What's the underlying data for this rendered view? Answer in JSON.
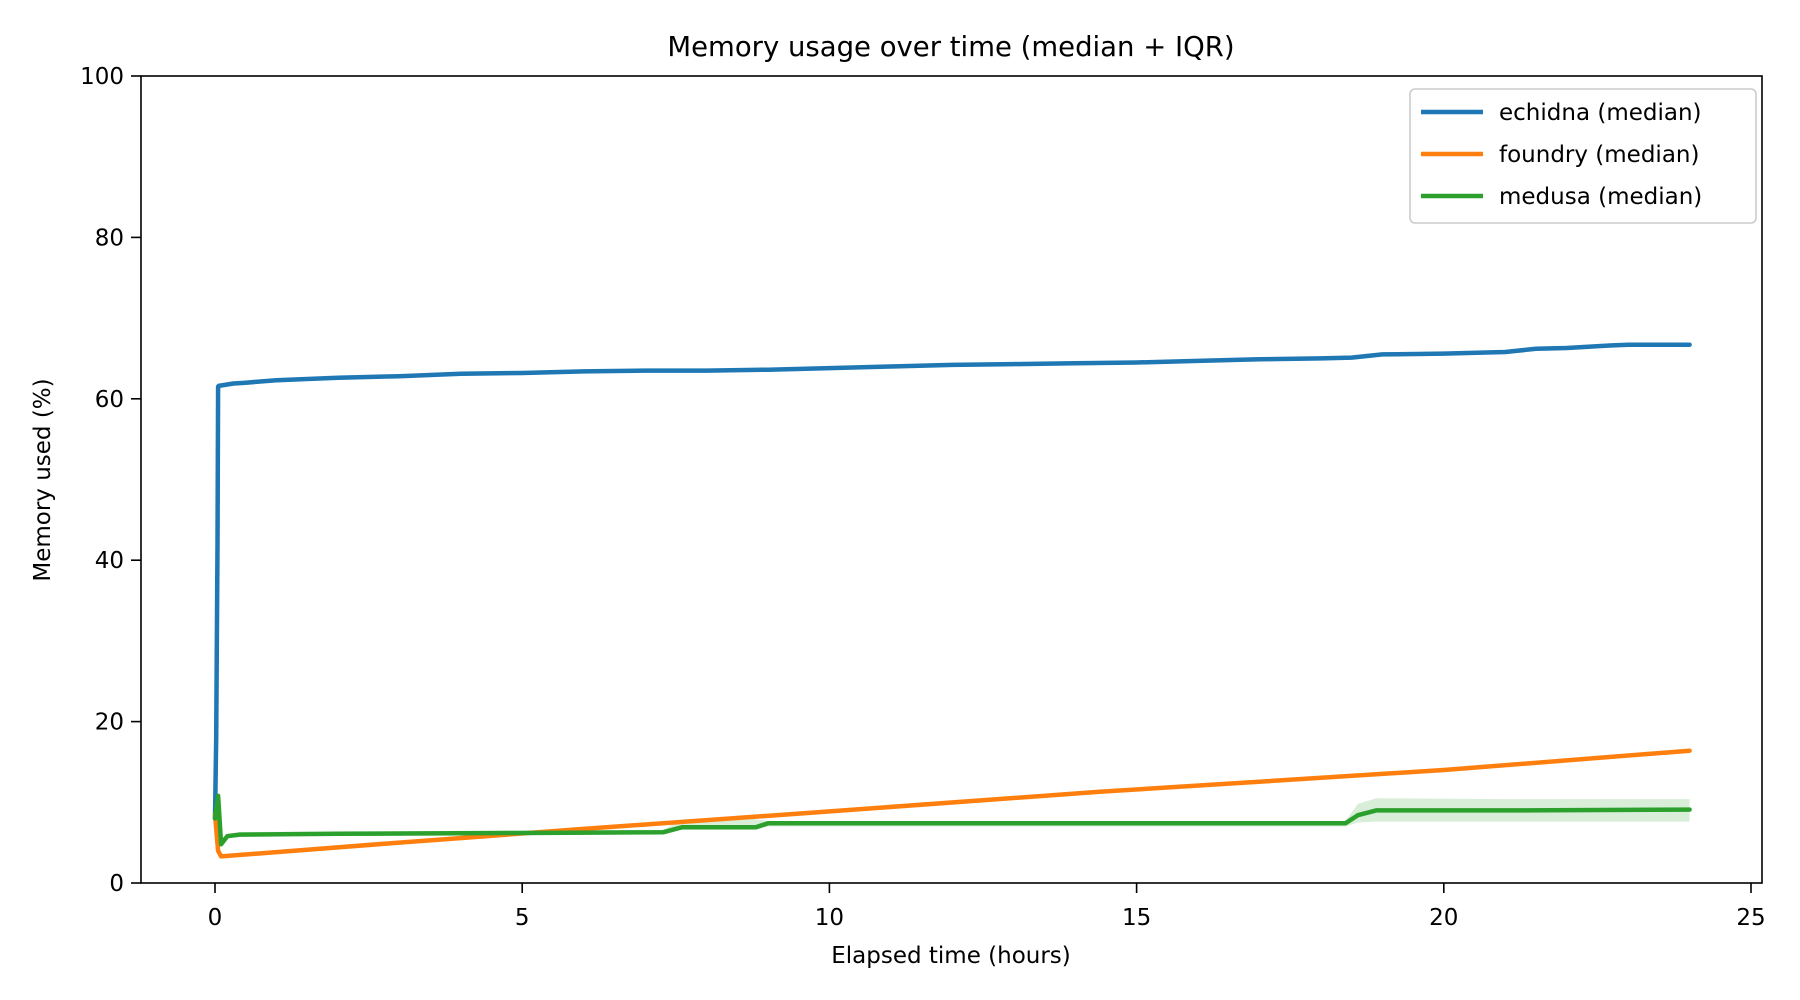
{
  "chart_data": {
    "type": "line",
    "title": "Memory usage over time (median + IQR)",
    "xlabel": "Elapsed time (hours)",
    "ylabel": "Memory used (%)",
    "xlim": [
      -1.2,
      25.3
    ],
    "ylim": [
      0,
      100
    ],
    "xticks": [
      0,
      5,
      10,
      15,
      20,
      25
    ],
    "yticks": [
      0,
      20,
      40,
      60,
      80,
      100
    ],
    "grid": false,
    "legend_position": "upper right",
    "series": [
      {
        "name": "echidna (median)",
        "color": "#1f77b4",
        "x": [
          0.0,
          0.02,
          0.04,
          0.05,
          0.06,
          0.3,
          0.5,
          1.0,
          2.0,
          3.0,
          4.0,
          5.0,
          6.0,
          7.0,
          8.0,
          9.0,
          10.0,
          11.0,
          12.0,
          13.0,
          14.0,
          15.0,
          16.0,
          17.0,
          18.0,
          18.5,
          19.0,
          20.0,
          21.0,
          21.5,
          22.0,
          22.7,
          23.0,
          24.0
        ],
        "values": [
          8.0,
          18.0,
          42.0,
          61.5,
          61.6,
          61.9,
          62.0,
          62.3,
          62.6,
          62.8,
          63.1,
          63.2,
          63.4,
          63.5,
          63.5,
          63.6,
          63.8,
          64.0,
          64.2,
          64.3,
          64.4,
          64.5,
          64.7,
          64.9,
          65.0,
          65.1,
          65.5,
          65.6,
          65.8,
          66.2,
          66.3,
          66.6,
          66.7,
          66.7
        ]
      },
      {
        "name": "foundry (median)",
        "color": "#ff7f0e",
        "x": [
          0.0,
          0.05,
          0.1,
          3.0,
          6.0,
          9.5,
          14.4,
          20.0,
          24.0
        ],
        "values": [
          8.5,
          4.0,
          3.3,
          5.0,
          6.7,
          8.6,
          11.3,
          14.0,
          16.4
        ]
      },
      {
        "name": "medusa (median)",
        "color": "#2ca02c",
        "x": [
          0.0,
          0.05,
          0.1,
          0.2,
          0.4,
          2.0,
          5.0,
          7.3,
          7.6,
          8.8,
          9.0,
          12.0,
          15.0,
          18.4,
          18.6,
          18.9,
          21.0,
          24.0
        ],
        "values": [
          8.0,
          10.8,
          4.8,
          5.8,
          6.0,
          6.1,
          6.2,
          6.3,
          6.9,
          6.9,
          7.4,
          7.4,
          7.4,
          7.4,
          8.4,
          9.0,
          9.0,
          9.1
        ],
        "iqr_low": [
          7.5,
          7.5,
          4.5,
          5.6,
          5.8,
          5.9,
          6.0,
          6.1,
          6.6,
          6.6,
          7.0,
          7.0,
          7.0,
          7.0,
          7.5,
          7.6,
          7.6,
          7.6
        ],
        "iqr_high": [
          9.0,
          11.0,
          5.5,
          6.1,
          6.3,
          6.4,
          6.5,
          6.6,
          7.9,
          7.9,
          7.7,
          7.7,
          7.7,
          7.7,
          9.8,
          10.5,
          10.4,
          10.4
        ]
      }
    ]
  }
}
